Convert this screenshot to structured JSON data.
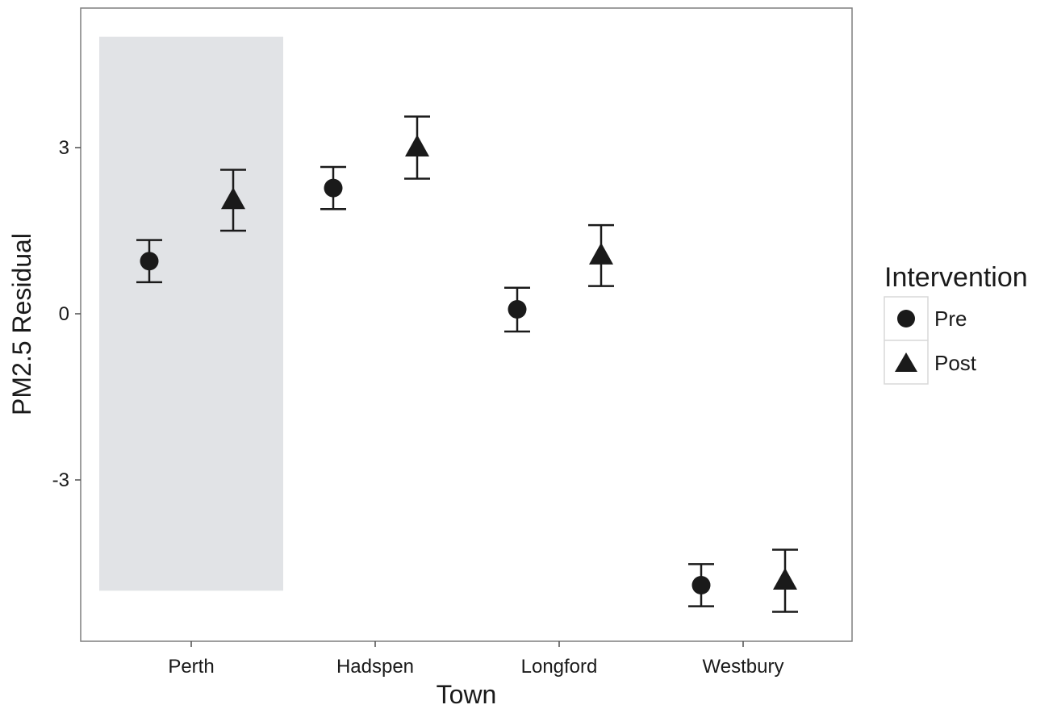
{
  "chart_data": {
    "type": "scatter",
    "subtype": "point-with-error-bars",
    "title": "",
    "xlabel": "Town",
    "ylabel": "PM2.5 Residual",
    "categories": [
      "Perth",
      "Hadspen",
      "Longford",
      "Westbury"
    ],
    "ylim": [
      -5.9,
      5.5
    ],
    "yticks": [
      -3,
      0,
      3
    ],
    "ytick_labels": [
      "-3",
      "0",
      "3"
    ],
    "grid": false,
    "highlight": {
      "category": "Perth",
      "ymin": -5,
      "ymax": 5,
      "color": "#e1e3e6"
    },
    "legend": {
      "title": "Intervention",
      "position": "right"
    },
    "series": [
      {
        "name": "Pre",
        "marker": "circle",
        "color": "#1a1a1a",
        "values": [
          0.95,
          2.27,
          0.08,
          -4.9
        ],
        "lower": [
          0.57,
          1.89,
          -0.32,
          -5.28
        ],
        "upper": [
          1.33,
          2.65,
          0.47,
          -4.52
        ]
      },
      {
        "name": "Post",
        "marker": "triangle",
        "color": "#1a1a1a",
        "values": [
          2.05,
          3.0,
          1.05,
          -4.82
        ],
        "lower": [
          1.5,
          2.44,
          0.5,
          -5.38
        ],
        "upper": [
          2.6,
          3.56,
          1.6,
          -4.26
        ]
      }
    ]
  }
}
